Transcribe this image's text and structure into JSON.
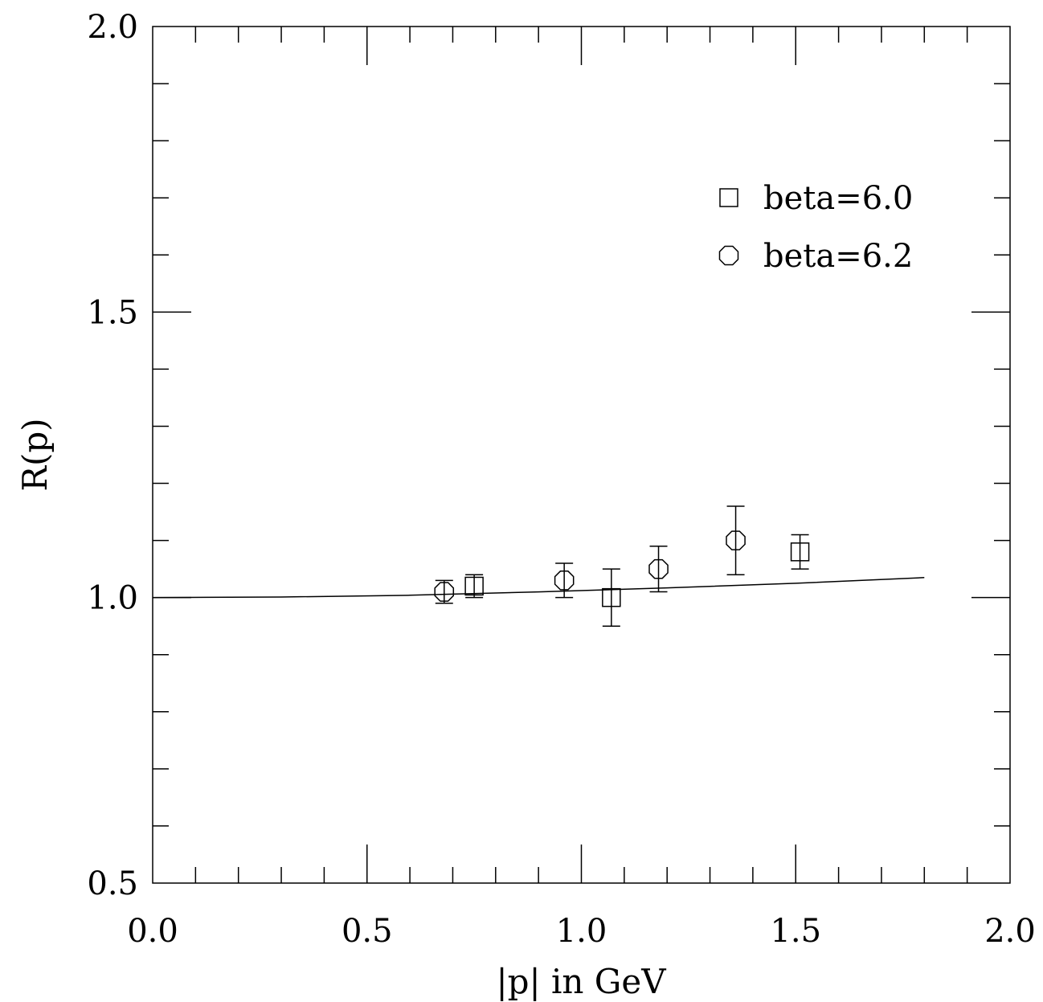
{
  "chart_data": {
    "type": "scatter",
    "title": "",
    "xlabel": "|p| in GeV",
    "ylabel": "R(p)",
    "xlim": [
      0.0,
      2.0
    ],
    "ylim": [
      0.5,
      2.0
    ],
    "x_tick_labels": [
      "0.0",
      "0.5",
      "1.0",
      "1.5",
      "2.0"
    ],
    "y_tick_labels": [
      "0.5",
      "1.0",
      "1.5",
      "2.0"
    ],
    "grid": false,
    "legend_placement": "top-right",
    "series": [
      {
        "name": "beta=6.0",
        "marker": "square",
        "points": [
          {
            "x": 0.75,
            "y": 1.02,
            "err": 0.02
          },
          {
            "x": 1.07,
            "y": 1.0,
            "err": 0.05
          },
          {
            "x": 1.51,
            "y": 1.08,
            "err": 0.03
          }
        ]
      },
      {
        "name": "beta=6.2",
        "marker": "octagon",
        "points": [
          {
            "x": 0.68,
            "y": 1.01,
            "err": 0.02
          },
          {
            "x": 0.96,
            "y": 1.03,
            "err": 0.03
          },
          {
            "x": 1.18,
            "y": 1.05,
            "err": 0.04
          },
          {
            "x": 1.36,
            "y": 1.1,
            "err": 0.06
          }
        ]
      }
    ],
    "fit_curve": {
      "points": [
        {
          "x": 0.0,
          "y": 1.0
        },
        {
          "x": 0.3,
          "y": 1.001
        },
        {
          "x": 0.6,
          "y": 1.004
        },
        {
          "x": 0.9,
          "y": 1.01
        },
        {
          "x": 1.2,
          "y": 1.017
        },
        {
          "x": 1.5,
          "y": 1.025
        },
        {
          "x": 1.8,
          "y": 1.035
        }
      ]
    }
  }
}
